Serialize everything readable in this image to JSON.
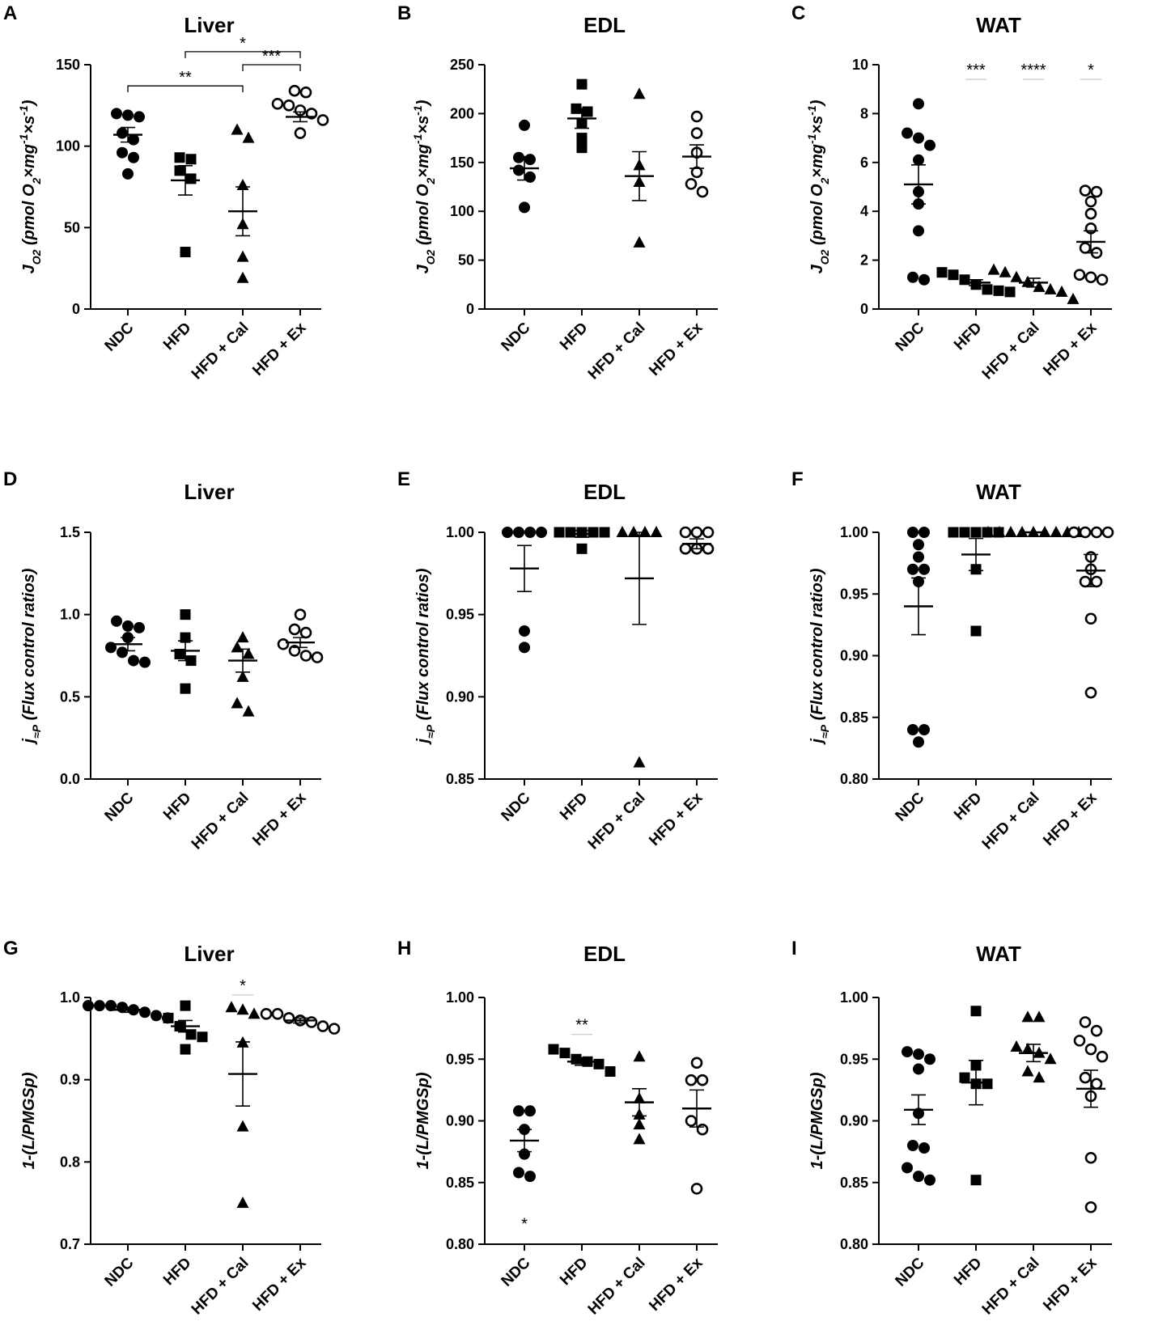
{
  "figure": {
    "categories": [
      "NDC",
      "HFD",
      "HFD + Cal",
      "HFD + Ex"
    ],
    "marker_fill": [
      "#000000",
      "#000000",
      "#000000",
      "#ffffff"
    ]
  },
  "chart_data": [
    {
      "panel": "A",
      "type": "scatter",
      "title": "Liver",
      "ylabel": "J_O2 (pmol O2×mg⁻¹×s⁻¹)",
      "ylim": [
        0,
        150
      ],
      "yticks": [
        0,
        50,
        100,
        150
      ],
      "tick_decimals": 0,
      "groups": [
        {
          "name": "NDC",
          "marker": "circle",
          "mean": 107,
          "sem": 4.5,
          "points": [
            120,
            118,
            119,
            108,
            104,
            96,
            93,
            83
          ]
        },
        {
          "name": "HFD",
          "marker": "square",
          "mean": 79,
          "sem": 9,
          "points": [
            93,
            92,
            85,
            80,
            35
          ]
        },
        {
          "name": "HFD + Cal",
          "marker": "triangle",
          "mean": 60,
          "sem": 15,
          "points": [
            110,
            105,
            76,
            52,
            32,
            19
          ]
        },
        {
          "name": "HFD + Ex",
          "marker": "circle",
          "mean": 118,
          "sem": 3,
          "points": [
            134,
            133,
            126,
            125,
            122,
            120,
            116,
            108
          ]
        }
      ],
      "brackets": [
        {
          "from": 1,
          "to": 3,
          "label": "*",
          "y": 158
        },
        {
          "from": 2,
          "to": 3,
          "label": "***",
          "y": 150
        },
        {
          "from": 0,
          "to": 2,
          "label": "**",
          "y": 137
        }
      ],
      "stars": []
    },
    {
      "panel": "B",
      "type": "scatter",
      "title": "EDL",
      "ylabel": "J_O2 (pmol O2×mg⁻¹×s⁻¹)",
      "ylim": [
        0,
        250
      ],
      "yticks": [
        0,
        50,
        100,
        150,
        200,
        250
      ],
      "tick_decimals": 0,
      "groups": [
        {
          "name": "NDC",
          "marker": "circle",
          "mean": 144,
          "sem": 12,
          "points": [
            188,
            155,
            153,
            142,
            135,
            104
          ]
        },
        {
          "name": "HFD",
          "marker": "square",
          "mean": 195,
          "sem": 10,
          "points": [
            230,
            205,
            202,
            190,
            175,
            165
          ]
        },
        {
          "name": "HFD + Cal",
          "marker": "triangle",
          "mean": 136,
          "sem": 25,
          "points": [
            220,
            147,
            130,
            68
          ]
        },
        {
          "name": "HFD + Ex",
          "marker": "circle",
          "mean": 156,
          "sem": 12,
          "points": [
            197,
            180,
            160,
            140,
            128,
            120
          ]
        }
      ],
      "brackets": [],
      "stars": []
    },
    {
      "panel": "C",
      "type": "scatter",
      "title": "WAT",
      "ylabel": "J_O2 (pmol O2×mg⁻¹×s⁻¹)",
      "ylim": [
        0,
        10
      ],
      "yticks": [
        0,
        2,
        4,
        6,
        8,
        10
      ],
      "tick_decimals": 0,
      "groups": [
        {
          "name": "NDC",
          "marker": "circle",
          "mean": 5.1,
          "sem": 0.8,
          "points": [
            8.4,
            7.2,
            7.0,
            6.7,
            6.1,
            4.8,
            4.3,
            3.2,
            1.3,
            1.2
          ]
        },
        {
          "name": "HFD",
          "marker": "square",
          "mean": 1.08,
          "sem": 0.12,
          "points": [
            1.5,
            1.4,
            1.2,
            1.0,
            0.8,
            0.75,
            0.7
          ]
        },
        {
          "name": "HFD + Cal",
          "marker": "triangle",
          "mean": 1.08,
          "sem": 0.18,
          "points": [
            1.6,
            1.5,
            1.3,
            1.1,
            0.9,
            0.8,
            0.7,
            0.4
          ]
        },
        {
          "name": "HFD + Ex",
          "marker": "circle",
          "mean": 2.75,
          "sem": 0.45,
          "points": [
            4.85,
            4.8,
            4.4,
            3.9,
            3.3,
            2.5,
            2.3,
            1.4,
            1.3,
            1.2
          ]
        }
      ],
      "brackets": [],
      "stars": [
        {
          "group": 1,
          "label": "***",
          "y": 9.5
        },
        {
          "group": 2,
          "label": "****",
          "y": 9.5
        },
        {
          "group": 3,
          "label": "*",
          "y": 9.5
        }
      ]
    },
    {
      "panel": "D",
      "type": "scatter",
      "title": "Liver",
      "ylabel": "j≈P (Flux control ratios)",
      "ylim": [
        0,
        1.5
      ],
      "yticks": [
        0.0,
        0.5,
        1.0,
        1.5
      ],
      "tick_decimals": 1,
      "groups": [
        {
          "name": "NDC",
          "marker": "circle",
          "mean": 0.82,
          "sem": 0.04,
          "points": [
            0.96,
            0.93,
            0.92,
            0.86,
            0.8,
            0.77,
            0.72,
            0.71
          ]
        },
        {
          "name": "HFD",
          "marker": "square",
          "mean": 0.78,
          "sem": 0.06,
          "points": [
            1.0,
            0.86,
            0.76,
            0.72,
            0.55
          ]
        },
        {
          "name": "HFD + Cal",
          "marker": "triangle",
          "mean": 0.72,
          "sem": 0.07,
          "points": [
            0.86,
            0.8,
            0.76,
            0.62,
            0.46,
            0.41
          ]
        },
        {
          "name": "HFD + Ex",
          "marker": "circle",
          "mean": 0.83,
          "sem": 0.03,
          "points": [
            1.0,
            0.91,
            0.89,
            0.82,
            0.78,
            0.75,
            0.74
          ]
        }
      ],
      "brackets": [],
      "stars": []
    },
    {
      "panel": "E",
      "type": "scatter",
      "title": "EDL",
      "ylabel": "j≈P (Flux control ratios)",
      "ylim": [
        0.85,
        1.0
      ],
      "yticks": [
        0.85,
        0.9,
        0.95,
        1.0
      ],
      "tick_decimals": 2,
      "groups": [
        {
          "name": "NDC",
          "marker": "circle",
          "mean": 0.978,
          "sem": 0.014,
          "points": [
            1.0,
            1.0,
            1.0,
            1.0,
            0.94,
            0.93
          ]
        },
        {
          "name": "HFD",
          "marker": "square",
          "mean": 0.999,
          "sem": 0.002,
          "points": [
            1.0,
            1.0,
            1.0,
            1.0,
            1.0,
            0.99
          ]
        },
        {
          "name": "HFD + Cal",
          "marker": "triangle",
          "mean": 0.972,
          "sem": 0.028,
          "points": [
            1.0,
            1.0,
            1.0,
            1.0,
            0.86
          ]
        },
        {
          "name": "HFD + Ex",
          "marker": "circle",
          "mean": 0.993,
          "sem": 0.003,
          "points": [
            1.0,
            1.0,
            1.0,
            0.99,
            0.99,
            0.99
          ]
        }
      ],
      "brackets": [],
      "stars": []
    },
    {
      "panel": "F",
      "type": "scatter",
      "title": "WAT",
      "ylabel": "j≈P (Flux control ratios)",
      "ylim": [
        0.8,
        1.0
      ],
      "yticks": [
        0.8,
        0.85,
        0.9,
        0.95,
        1.0
      ],
      "tick_decimals": 2,
      "groups": [
        {
          "name": "NDC",
          "marker": "circle",
          "mean": 0.94,
          "sem": 0.023,
          "points": [
            1.0,
            1.0,
            0.99,
            0.98,
            0.97,
            0.97,
            0.96,
            0.84,
            0.84,
            0.83
          ]
        },
        {
          "name": "HFD",
          "marker": "square",
          "mean": 0.982,
          "sem": 0.013,
          "points": [
            1.0,
            1.0,
            1.0,
            1.0,
            1.0,
            0.97,
            0.92
          ]
        },
        {
          "name": "HFD + Cal",
          "marker": "triangle",
          "mean": 1.0,
          "sem": 0.0,
          "points": [
            1.0,
            1.0,
            1.0,
            1.0,
            1.0,
            1.0,
            1.0,
            1.0,
            1.0
          ]
        },
        {
          "name": "HFD + Ex",
          "marker": "circle",
          "mean": 0.969,
          "sem": 0.013,
          "points": [
            1.0,
            1.0,
            1.0,
            1.0,
            0.98,
            0.97,
            0.96,
            0.96,
            0.93,
            0.87
          ]
        }
      ],
      "brackets": [],
      "stars": []
    },
    {
      "panel": "G",
      "type": "scatter",
      "title": "Liver",
      "ylabel": "1-(L/PMGSp)",
      "ylim": [
        0.7,
        1.0
      ],
      "yticks": [
        0.7,
        0.8,
        0.9,
        1.0
      ],
      "tick_decimals": 1,
      "groups": [
        {
          "name": "NDC",
          "marker": "circle",
          "mean": 0.985,
          "sem": 0.003,
          "points": [
            0.99,
            0.99,
            0.99,
            0.988,
            0.985,
            0.982,
            0.978,
            0.975
          ]
        },
        {
          "name": "HFD",
          "marker": "square",
          "mean": 0.965,
          "sem": 0.007,
          "points": [
            0.99,
            0.975,
            0.965,
            0.955,
            0.952,
            0.937
          ]
        },
        {
          "name": "HFD + Cal",
          "marker": "triangle",
          "mean": 0.907,
          "sem": 0.039,
          "points": [
            0.988,
            0.985,
            0.98,
            0.945,
            0.843,
            0.75
          ]
        },
        {
          "name": "HFD + Ex",
          "marker": "circle",
          "mean": 0.972,
          "sem": 0.003,
          "points": [
            0.98,
            0.98,
            0.975,
            0.972,
            0.97,
            0.965,
            0.962
          ]
        }
      ],
      "brackets": [],
      "stars": [
        {
          "group": 2,
          "label": "*",
          "y": 1.006
        }
      ]
    },
    {
      "panel": "H",
      "type": "scatter",
      "title": "EDL",
      "ylabel": "1-(L/PMGSp)",
      "ylim": [
        0.8,
        1.0
      ],
      "yticks": [
        0.8,
        0.85,
        0.9,
        0.95,
        1.0
      ],
      "tick_decimals": 2,
      "groups": [
        {
          "name": "NDC",
          "marker": "circle",
          "mean": 0.884,
          "sem": 0.009,
          "points": [
            0.908,
            0.908,
            0.893,
            0.873,
            0.858,
            0.855
          ]
        },
        {
          "name": "HFD",
          "marker": "square",
          "mean": 0.948,
          "sem": 0.003,
          "points": [
            0.958,
            0.955,
            0.95,
            0.948,
            0.946,
            0.94
          ]
        },
        {
          "name": "HFD + Cal",
          "marker": "triangle",
          "mean": 0.915,
          "sem": 0.011,
          "points": [
            0.952,
            0.918,
            0.905,
            0.897,
            0.885
          ]
        },
        {
          "name": "HFD + Ex",
          "marker": "circle",
          "mean": 0.91,
          "sem": 0.015,
          "points": [
            0.947,
            0.933,
            0.933,
            0.9,
            0.893,
            0.845
          ]
        }
      ],
      "brackets": [],
      "stars": [
        {
          "group": 1,
          "label": "**",
          "y": 0.972
        },
        {
          "group": 0,
          "label": "*",
          "y": 0.812
        }
      ]
    },
    {
      "panel": "I",
      "type": "scatter",
      "title": "WAT",
      "ylabel": "1-(L/PMGSp)",
      "ylim": [
        0.8,
        1.0
      ],
      "yticks": [
        0.8,
        0.85,
        0.9,
        0.95,
        1.0
      ],
      "tick_decimals": 2,
      "groups": [
        {
          "name": "NDC",
          "marker": "circle",
          "mean": 0.909,
          "sem": 0.012,
          "points": [
            0.956,
            0.954,
            0.95,
            0.942,
            0.906,
            0.88,
            0.878,
            0.862,
            0.855,
            0.852
          ]
        },
        {
          "name": "HFD",
          "marker": "square",
          "mean": 0.931,
          "sem": 0.018,
          "points": [
            0.989,
            0.945,
            0.935,
            0.93,
            0.93,
            0.852
          ]
        },
        {
          "name": "HFD + Cal",
          "marker": "triangle",
          "mean": 0.955,
          "sem": 0.007,
          "points": [
            0.984,
            0.984,
            0.96,
            0.958,
            0.955,
            0.95,
            0.94,
            0.935
          ]
        },
        {
          "name": "HFD + Ex",
          "marker": "circle",
          "mean": 0.926,
          "sem": 0.015,
          "points": [
            0.98,
            0.973,
            0.965,
            0.958,
            0.952,
            0.935,
            0.93,
            0.92,
            0.87,
            0.83
          ]
        }
      ],
      "brackets": [],
      "stars": []
    }
  ]
}
